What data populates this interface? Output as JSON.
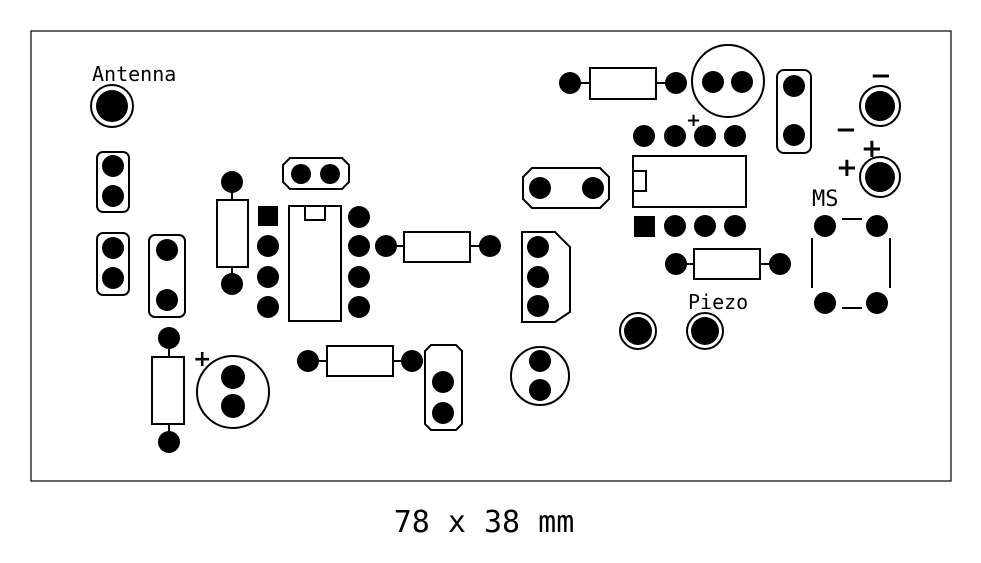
{
  "labels": {
    "antenna": "Antenna",
    "ms": "MS",
    "piezo": "Piezo",
    "dimensions": "78 x 38 mm"
  },
  "polarity": {
    "plus": "+",
    "minus": "−"
  },
  "colors": {
    "background": "#ffffff",
    "ink": "#000000"
  }
}
